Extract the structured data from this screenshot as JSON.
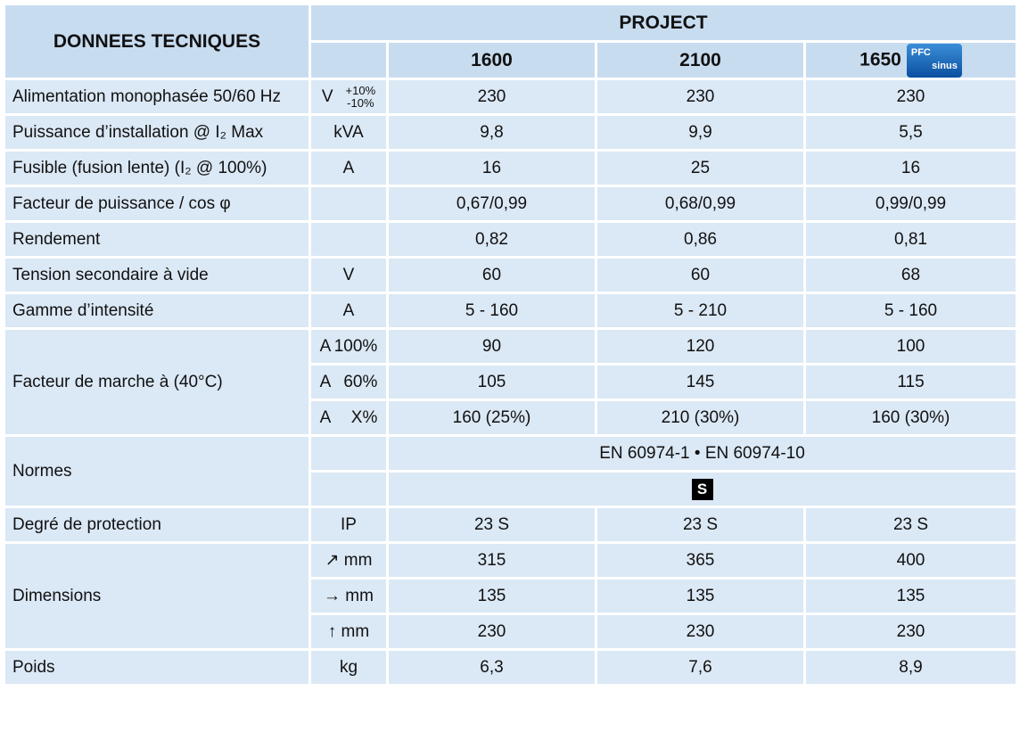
{
  "header": {
    "title": "DONNEES TECNIQUES",
    "group": "PROJECT",
    "models": [
      "1600",
      "2100",
      "1650"
    ],
    "badge": [
      "PFC",
      "sinus"
    ]
  },
  "rows": [
    {
      "label": "Alimentation monophasée 50/60 Hz",
      "unit": "V",
      "tolerance": [
        "+10%",
        "-10%"
      ],
      "values": [
        "230",
        "230",
        "230"
      ]
    },
    {
      "label": "Puissance d’installation @ I₂ Max",
      "unit": "kVA",
      "values": [
        "9,8",
        "9,9",
        "5,5"
      ]
    },
    {
      "label": "Fusible (fusion lente) (I₂ @ 100%)",
      "unit": "A",
      "values": [
        "16",
        "25",
        "16"
      ]
    },
    {
      "label": "Facteur de puissance / cos φ",
      "values": [
        "0,67/0,99",
        "0,68/0,99",
        "0,99/0,99"
      ]
    },
    {
      "label": "Rendement",
      "values": [
        "0,82",
        "0,86",
        "0,81"
      ]
    },
    {
      "label": "Tension secondaire à vide",
      "unit": "V",
      "values": [
        "60",
        "60",
        "68"
      ]
    },
    {
      "label": "Gamme d’intensité",
      "unit": "A",
      "values": [
        "5 - 160",
        "5 - 210",
        "5 - 160"
      ]
    },
    {
      "label": "Facteur de marche à (40°C)",
      "sub": [
        {
          "unit": "A",
          "duty": "100%",
          "values": [
            "90",
            "120",
            "100"
          ]
        },
        {
          "unit": "A",
          "duty": "60%",
          "values": [
            "105",
            "145",
            "115"
          ]
        },
        {
          "unit": "A",
          "duty": "X%",
          "values": [
            "160 (25%)",
            "210 (30%)",
            "160 (30%)"
          ]
        }
      ]
    },
    {
      "label": "Normes",
      "lines": [
        "EN 60974-1 • EN 60974-10",
        "S"
      ]
    },
    {
      "label": "Degré de protection",
      "unit": "IP",
      "values": [
        "23 S",
        "23 S",
        "23 S"
      ]
    },
    {
      "label": "Dimensions",
      "sub": [
        {
          "unit": "↗ mm",
          "values": [
            "315",
            "365",
            "400"
          ]
        },
        {
          "unit": "→ mm",
          "values": [
            "135",
            "135",
            "135"
          ]
        },
        {
          "unit": "↑ mm",
          "values": [
            "230",
            "230",
            "230"
          ]
        }
      ]
    },
    {
      "label": "Poids",
      "unit": "kg",
      "values": [
        "6,3",
        "7,6",
        "8,9"
      ]
    }
  ]
}
